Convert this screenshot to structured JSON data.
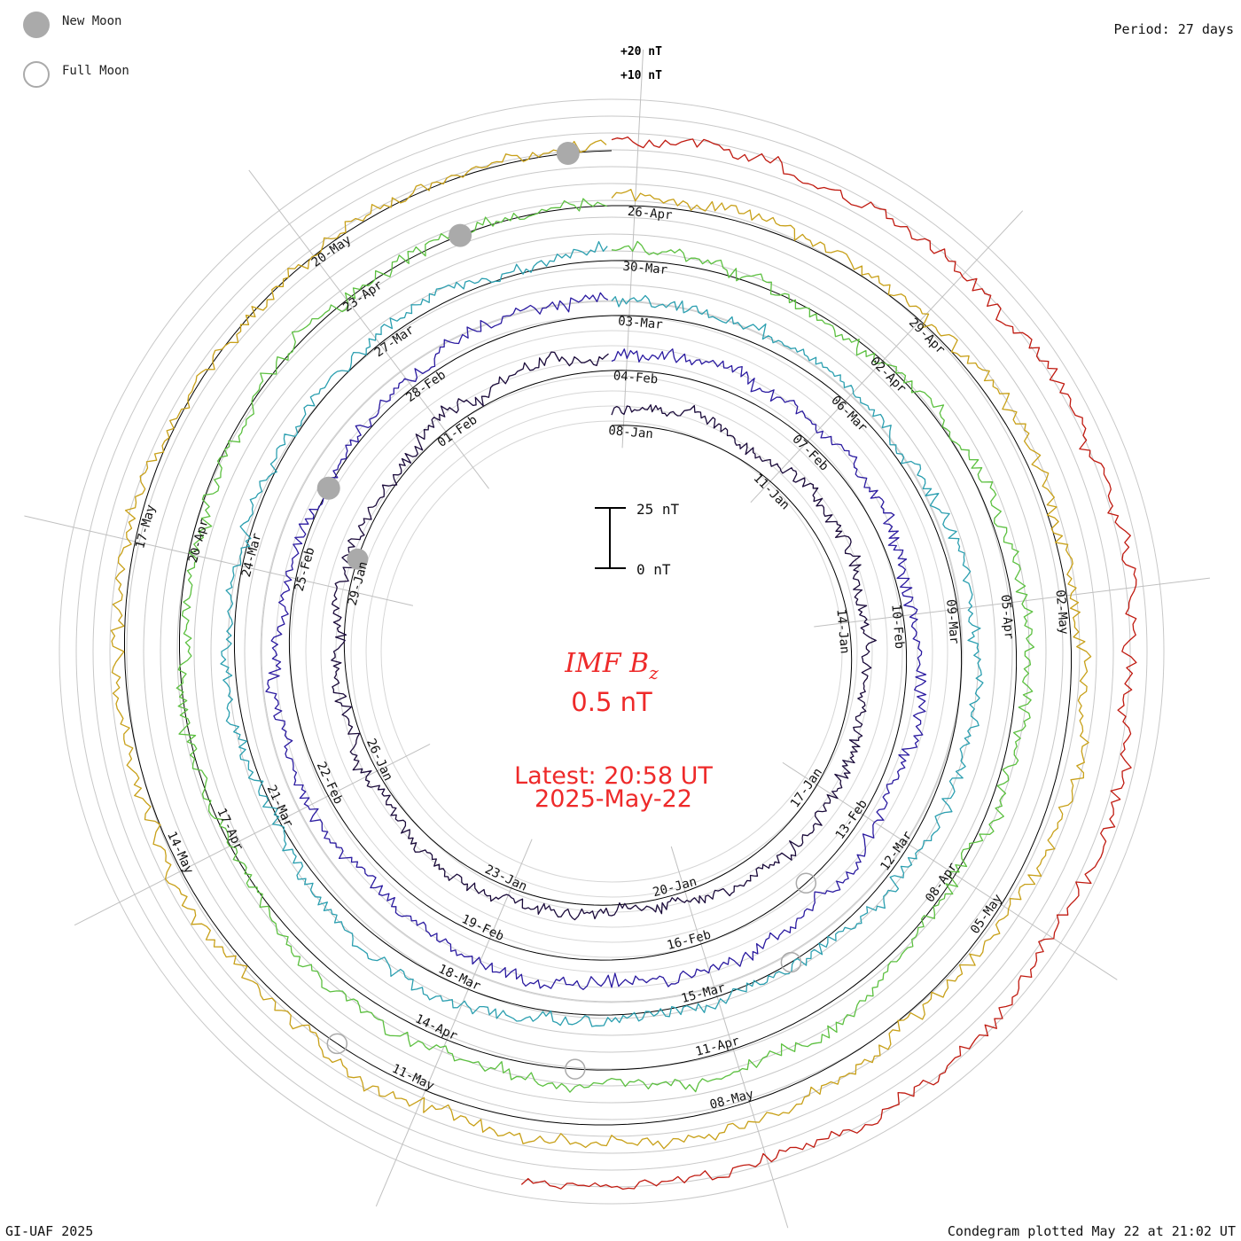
{
  "legend": {
    "new_moon_label": "New Moon",
    "full_moon_label": "Full Moon",
    "new_moon_color": "#aaaaaa"
  },
  "header": {
    "period": "Period: 27 days"
  },
  "footer": {
    "credit": "GI-UAF 2025",
    "plotted": "Condegram plotted May 22 at 21:02 UT"
  },
  "center": {
    "title_main": "IMF B",
    "title_sub": "z",
    "value": "0.5 nT",
    "latest_line1": "Latest: 20:58 UT",
    "latest_line2": "2025-May-22",
    "text_color": "#ee2a2a"
  },
  "scale_bar": {
    "top_label": "25 nT",
    "bottom_label": "0 nT"
  },
  "reference_labels": [
    "+20 nT",
    "+10 nT"
  ],
  "chart_data": {
    "type": "line",
    "layout": "condegram (spiral, one ring per 27-day rotation)",
    "variable": "IMF Bz",
    "units": "nT",
    "period_days": 27,
    "series": [
      {
        "color": "#1a0a3a",
        "dates": [
          "08-Jan",
          "11-Jan",
          "14-Jan",
          "17-Jan",
          "20-Jan",
          "23-Jan",
          "26-Jan",
          "29-Jan",
          "01-Feb"
        ]
      },
      {
        "color": "#2a1aa0",
        "dates": [
          "04-Feb",
          "07-Feb",
          "10-Feb",
          "13-Feb",
          "16-Feb",
          "19-Feb",
          "22-Feb",
          "25-Feb",
          "28-Feb"
        ]
      },
      {
        "color": "#2b9fb0",
        "dates": [
          "03-Mar",
          "06-Mar",
          "09-Mar",
          "12-Mar",
          "15-Mar",
          "18-Mar",
          "21-Mar",
          "24-Mar",
          "27-Mar"
        ]
      },
      {
        "color": "#5cc040",
        "dates": [
          "30-Mar",
          "02-Apr",
          "05-Apr",
          "08-Apr",
          "11-Apr",
          "14-Apr",
          "17-Apr",
          "20-Apr",
          "23-Apr"
        ]
      },
      {
        "color": "#c8a018",
        "dates": [
          "26-Apr",
          "29-Apr",
          "02-May",
          "05-May",
          "08-May",
          "11-May",
          "14-May",
          "17-May",
          "20-May"
        ]
      },
      {
        "color": "#c01a10",
        "dates": []
      }
    ],
    "moon_phases": {
      "new_moon_dates_visible": [
        "29-Jan",
        "27-Feb",
        "29-Mar",
        "27-Apr"
      ],
      "full_moon_dates_visible": [
        "13-Feb",
        "14-Mar",
        "13-Apr",
        "12-May"
      ]
    }
  }
}
